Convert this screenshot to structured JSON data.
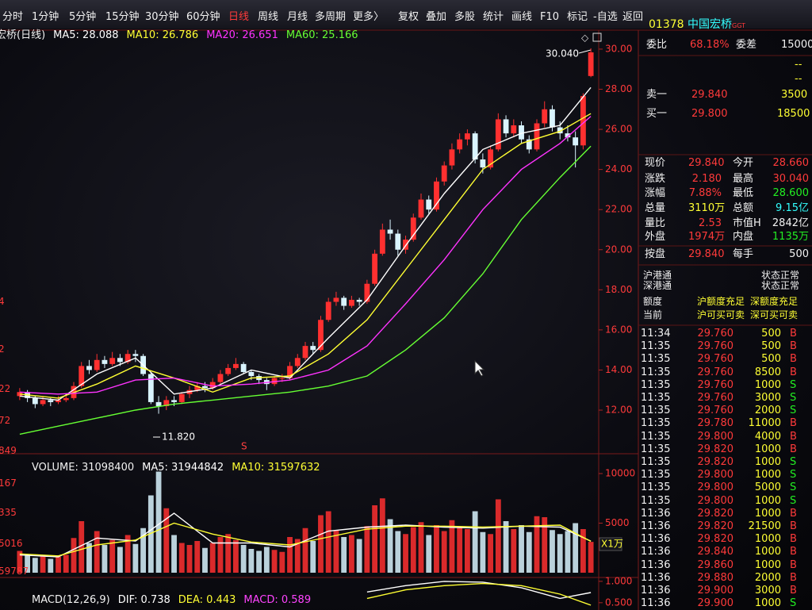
{
  "toolbar": {
    "items": [
      "分时",
      "1分钟",
      "5分钟",
      "15分钟",
      "30分钟",
      "60分钟",
      "日线",
      "周线",
      "月线",
      "多周期",
      "更多〉",
      "复权",
      "叠加",
      "多股",
      "统计",
      "画线",
      "F10",
      "标记",
      "-自选",
      "返回"
    ]
  },
  "quote_header": {
    "code": "01378",
    "name": "中国宏桥",
    "tag": "GGT"
  },
  "left_edge_labels": [
    "4",
    "2",
    "22",
    "72",
    "849",
    "167",
    "335",
    "5016",
    "59787"
  ],
  "annotations": {
    "high": "30.040",
    "low": "11.820",
    "signal": "S",
    "unit": "X1万"
  },
  "chart_data": [
    {
      "type": "candlestick",
      "title": "国宏桥(日线)",
      "up_color": "#ff3030",
      "down_color": "#d9f4ff",
      "open": [
        12.7,
        12.9,
        12.6,
        12.3,
        12.5,
        12.4,
        12.5,
        12.6,
        13.2,
        14.2,
        14.0,
        14.5,
        14.3,
        14.6,
        14.4,
        14.8,
        14.7,
        13.8,
        12.4,
        12.2,
        12.5,
        12.4,
        12.8,
        13.0,
        13.2,
        13.1,
        13.4,
        13.8,
        14.1,
        14.3,
        13.9,
        13.7,
        13.5,
        13.3,
        13.6,
        13.6,
        14.2,
        14.6,
        15.2,
        15.0,
        16.5,
        17.4,
        17.6,
        17.2,
        17.5,
        17.4,
        18.3,
        19.8,
        21.0,
        20.8,
        20.0,
        20.5,
        21.6,
        22.5,
        22.0,
        23.4,
        24.2,
        25.0,
        25.5,
        25.8,
        24.5,
        24.1,
        25.0,
        26.5,
        25.8,
        26.2,
        25.5,
        25.0,
        26.3,
        27.0,
        26.1,
        25.8,
        25.6,
        25.2,
        28.66
      ],
      "high": [
        13.1,
        13.0,
        12.7,
        12.7,
        12.6,
        12.7,
        12.8,
        13.4,
        14.4,
        14.5,
        14.8,
        14.7,
        14.9,
        14.8,
        15.0,
        15.0,
        14.8,
        13.9,
        12.7,
        12.7,
        12.7,
        12.9,
        13.2,
        13.4,
        13.4,
        13.6,
        14.0,
        14.3,
        14.6,
        14.4,
        14.0,
        13.8,
        13.6,
        13.7,
        13.8,
        14.4,
        14.8,
        15.4,
        15.4,
        16.7,
        17.6,
        17.9,
        17.7,
        17.7,
        17.6,
        18.5,
        20.0,
        21.3,
        21.5,
        21.0,
        20.7,
        21.8,
        22.8,
        22.7,
        23.6,
        24.4,
        25.3,
        25.8,
        26.0,
        25.9,
        24.8,
        25.2,
        26.8,
        26.7,
        26.5,
        26.4,
        25.7,
        26.5,
        27.4,
        27.2,
        26.4,
        26.2,
        25.9,
        27.8,
        30.04
      ],
      "low": [
        12.5,
        12.4,
        12.1,
        12.2,
        12.2,
        12.3,
        12.4,
        12.5,
        13.1,
        13.8,
        13.9,
        14.1,
        14.2,
        14.2,
        14.3,
        14.4,
        13.7,
        12.3,
        11.82,
        12.0,
        12.2,
        12.3,
        12.6,
        12.9,
        12.9,
        13.0,
        13.3,
        13.7,
        14.0,
        13.8,
        13.5,
        13.3,
        13.0,
        13.2,
        13.4,
        13.5,
        14.1,
        14.5,
        14.8,
        14.9,
        16.4,
        17.2,
        17.0,
        17.1,
        17.2,
        17.3,
        18.2,
        19.7,
        20.5,
        19.7,
        19.8,
        20.4,
        21.5,
        21.8,
        21.9,
        23.2,
        24.0,
        24.8,
        25.2,
        24.3,
        23.8,
        24.0,
        24.9,
        25.6,
        25.6,
        25.3,
        24.8,
        24.9,
        26.1,
        25.9,
        25.5,
        25.4,
        24.1,
        25.0,
        28.6
      ],
      "close": [
        12.9,
        12.6,
        12.3,
        12.5,
        12.4,
        12.5,
        12.6,
        13.2,
        14.2,
        14.0,
        14.5,
        14.3,
        14.6,
        14.4,
        14.8,
        14.7,
        13.8,
        12.4,
        12.2,
        12.5,
        12.4,
        12.8,
        13.0,
        13.2,
        13.1,
        13.4,
        13.8,
        14.1,
        14.3,
        13.9,
        13.7,
        13.5,
        13.3,
        13.6,
        13.6,
        14.2,
        14.6,
        15.2,
        15.0,
        16.5,
        17.4,
        17.6,
        17.2,
        17.5,
        17.4,
        18.3,
        19.8,
        21.0,
        20.8,
        20.0,
        20.5,
        21.6,
        22.5,
        22.0,
        23.4,
        24.2,
        25.0,
        25.5,
        25.8,
        24.5,
        24.1,
        25.0,
        26.5,
        25.8,
        26.2,
        25.5,
        25.0,
        26.3,
        27.0,
        26.1,
        25.8,
        25.6,
        25.2,
        27.66,
        29.84
      ],
      "series": [
        {
          "name": "MA5: 28.088",
          "color": "#ffffff",
          "x": [
            0,
            5,
            10,
            15,
            20,
            25,
            30,
            35,
            40,
            45,
            50,
            55,
            60,
            65,
            70,
            74
          ],
          "values": [
            12.7,
            12.5,
            13.8,
            14.6,
            12.8,
            13.1,
            14.0,
            13.6,
            15.6,
            17.5,
            20.2,
            22.8,
            25.0,
            25.8,
            26.2,
            28.088
          ]
        },
        {
          "name": "MA10: 26.786",
          "color": "#ffff33",
          "x": [
            0,
            5,
            10,
            15,
            20,
            25,
            30,
            35,
            40,
            45,
            50,
            55,
            60,
            65,
            70,
            74
          ],
          "values": [
            12.8,
            12.6,
            13.3,
            14.2,
            13.6,
            12.9,
            13.6,
            13.7,
            14.8,
            16.5,
            19.0,
            21.5,
            24.0,
            25.3,
            25.9,
            26.786
          ]
        },
        {
          "name": "MA20: 26.651",
          "color": "#ff33ff",
          "x": [
            0,
            5,
            10,
            15,
            20,
            25,
            30,
            35,
            40,
            45,
            50,
            55,
            60,
            65,
            70,
            74
          ],
          "values": [
            12.9,
            12.8,
            12.9,
            13.5,
            13.6,
            13.2,
            13.3,
            13.5,
            14.0,
            15.2,
            17.3,
            19.5,
            22.0,
            24.0,
            25.3,
            26.651
          ]
        },
        {
          "name": "MA60: 25.166",
          "color": "#66ff33",
          "x": [
            0,
            5,
            10,
            15,
            20,
            25,
            30,
            35,
            40,
            45,
            50,
            55,
            60,
            65,
            70,
            74
          ],
          "values": [
            10.8,
            11.2,
            11.6,
            12.0,
            12.3,
            12.5,
            12.7,
            12.9,
            13.2,
            13.7,
            15.0,
            16.6,
            18.8,
            21.5,
            23.6,
            25.166
          ]
        }
      ],
      "ylim": [
        10.3,
        30.67
      ],
      "yticks": [
        {
          "value": 30,
          "label": "30.00"
        },
        {
          "value": 28,
          "label": "28.00"
        },
        {
          "value": 26,
          "label": "26.00"
        },
        {
          "value": 24,
          "label": "24.00"
        },
        {
          "value": 22,
          "label": "22.00"
        },
        {
          "value": 20,
          "label": "20.00"
        },
        {
          "value": 18,
          "label": "18.00"
        },
        {
          "value": 16,
          "label": "16.00"
        },
        {
          "value": 14,
          "label": "14.00"
        },
        {
          "value": 12,
          "label": "12.00"
        }
      ]
    },
    {
      "type": "bar",
      "title": "VOLUME: 31098400",
      "values": [
        2200,
        1800,
        1500,
        1700,
        1400,
        1600,
        1800,
        3500,
        5200,
        3000,
        4200,
        2800,
        3300,
        2600,
        3800,
        2900,
        4500,
        7800,
        10200,
        6500,
        3800,
        3000,
        2800,
        3200,
        2500,
        3000,
        3600,
        3900,
        3300,
        2800,
        2400,
        2200,
        2600,
        2300,
        2100,
        3600,
        3400,
        4500,
        3200,
        5800,
        6200,
        4300,
        3600,
        3800,
        3400,
        4700,
        6800,
        7500,
        5400,
        4200,
        3900,
        4600,
        5100,
        3800,
        4800,
        4200,
        5300,
        4600,
        4400,
        6200,
        4100,
        3900,
        7400,
        5200,
        4400,
        4800,
        4100,
        5700,
        5600,
        4300,
        3900,
        4200,
        5000,
        4400,
        3110
      ],
      "series": [
        {
          "name": "MA5: 31944842",
          "color": "#ffffff",
          "x": [
            0,
            5,
            10,
            15,
            20,
            25,
            30,
            35,
            40,
            45,
            50,
            55,
            60,
            65,
            70,
            74
          ],
          "values": [
            1800,
            1600,
            3500,
            3200,
            6000,
            3000,
            3000,
            2600,
            4200,
            4600,
            4800,
            4600,
            4500,
            4700,
            4600,
            3194
          ]
        },
        {
          "name": "MA10: 31597632",
          "color": "#ffff33",
          "x": [
            0,
            5,
            10,
            15,
            20,
            25,
            30,
            35,
            40,
            45,
            50,
            55,
            60,
            65,
            70,
            74
          ],
          "values": [
            1900,
            1700,
            2800,
            3300,
            5000,
            3900,
            3100,
            2800,
            3600,
            4400,
            4700,
            4700,
            4600,
            4700,
            4800,
            3160
          ]
        }
      ],
      "ylim": [
        0,
        11360
      ],
      "yticks": [
        10000,
        5000
      ]
    },
    {
      "type": "line",
      "title": "MACD(12,26,9)",
      "histogram_label": "MACD: 0.589",
      "series": [
        {
          "name": "DIF: 0.738",
          "color": "#ffffff",
          "x": [
            45,
            50,
            55,
            60,
            65,
            70,
            74
          ],
          "values": [
            0.75,
            0.9,
            1.0,
            0.98,
            0.85,
            0.6,
            0.738
          ]
        },
        {
          "name": "DEA: 0.443",
          "color": "#ffff33",
          "x": [
            45,
            50,
            55,
            60,
            65,
            70,
            74
          ],
          "values": [
            0.6,
            0.8,
            0.9,
            0.95,
            0.9,
            0.7,
            0.443
          ]
        }
      ],
      "ylim": [
        0.33,
        1.09
      ],
      "yticks": [
        {
          "value": 1,
          "label": "1.000"
        },
        {
          "value": 0.5,
          "label": "0.500"
        }
      ]
    }
  ],
  "quote_panel": {
    "ratio": [
      "委比",
      "68.18%",
      "委差",
      "15000"
    ],
    "dashes": [
      "--",
      "--"
    ],
    "ask": [
      "卖一",
      "29.840",
      "3500"
    ],
    "bid": [
      "买一",
      "29.800",
      "18500"
    ],
    "stats": [
      [
        "现价",
        "29.840",
        "今开",
        "28.660"
      ],
      [
        "涨跌",
        "2.180",
        "最高",
        "30.040"
      ],
      [
        "涨幅",
        "7.88%",
        "最低",
        "28.600"
      ],
      [
        "总量",
        "3110万",
        "总额",
        "9.15亿"
      ],
      [
        "量比",
        "2.53",
        "市值H",
        "2842亿"
      ],
      [
        "外盘",
        "1974万",
        "内盘",
        "1135万"
      ],
      [
        "按盘",
        "29.840",
        "每手",
        "500"
      ]
    ],
    "status": [
      [
        "沪港通",
        "状态正常"
      ],
      [
        "深港通",
        "状态正常"
      ],
      [
        "额度",
        "沪额度充足",
        "深额度充足"
      ],
      [
        "当前",
        "沪可买可卖",
        "深可买可卖"
      ]
    ]
  },
  "trades": {
    "rows": [
      [
        "11:34",
        "29.760",
        "500",
        "B"
      ],
      [
        "11:35",
        "29.760",
        "500",
        "B"
      ],
      [
        "11:35",
        "29.760",
        "500",
        "B"
      ],
      [
        "11:35",
        "29.760",
        "8500",
        "B"
      ],
      [
        "11:35",
        "29.760",
        "1000",
        "S"
      ],
      [
        "11:35",
        "29.760",
        "3000",
        "S"
      ],
      [
        "11:35",
        "29.760",
        "2000",
        "S"
      ],
      [
        "11:35",
        "29.780",
        "11000",
        "B"
      ],
      [
        "11:35",
        "29.800",
        "4000",
        "B"
      ],
      [
        "11:35",
        "29.820",
        "1000",
        "B"
      ],
      [
        "11:35",
        "29.820",
        "1000",
        "S"
      ],
      [
        "11:35",
        "29.800",
        "1000",
        "S"
      ],
      [
        "11:35",
        "29.800",
        "5000",
        "S"
      ],
      [
        "11:35",
        "29.800",
        "1000",
        "S"
      ],
      [
        "11:36",
        "29.820",
        "1000",
        "B"
      ],
      [
        "11:36",
        "29.820",
        "21500",
        "B"
      ],
      [
        "11:36",
        "29.820",
        "1000",
        "B"
      ],
      [
        "11:36",
        "29.840",
        "1000",
        "B"
      ],
      [
        "11:36",
        "29.860",
        "1000",
        "B"
      ],
      [
        "11:36",
        "29.880",
        "2000",
        "B"
      ],
      [
        "11:36",
        "29.900",
        "3000",
        "B"
      ],
      [
        "11:36",
        "29.900",
        "1000",
        "S"
      ],
      [
        "11:36",
        "29.900",
        "1000",
        "B"
      ]
    ]
  }
}
